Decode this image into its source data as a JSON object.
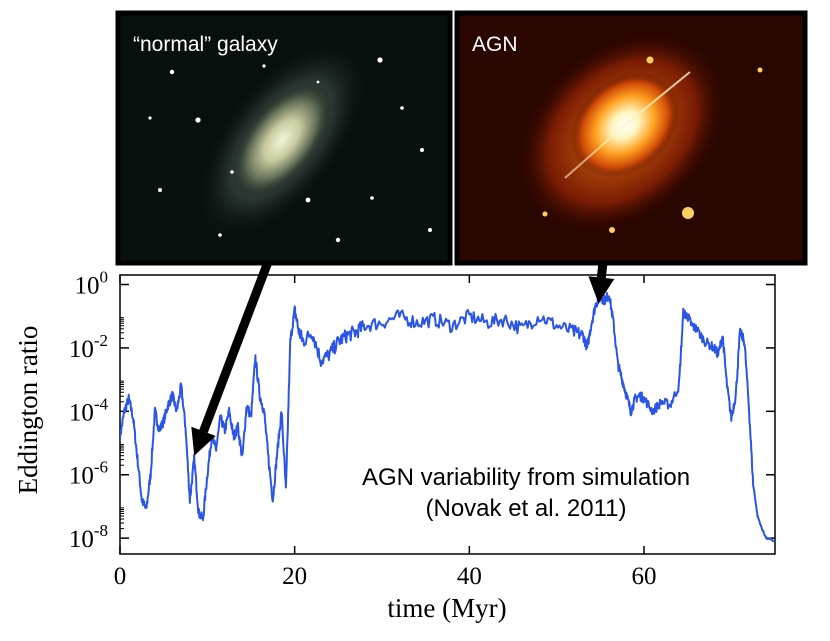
{
  "chart_data": {
    "type": "line",
    "xlabel": "time (Myr)",
    "ylabel": "Eddington ratio",
    "xlim": [
      0,
      75
    ],
    "ylim_log10": [
      -8.5,
      0.3
    ],
    "x_ticks": [
      0,
      20,
      40,
      60
    ],
    "y_ticks": [
      {
        "base": "10",
        "exp": "0",
        "value": 0
      },
      {
        "base": "10",
        "exp": "-2",
        "value": -2
      },
      {
        "base": "10",
        "exp": "-4",
        "value": -4
      },
      {
        "base": "10",
        "exp": "-6",
        "value": -6
      },
      {
        "base": "10",
        "exp": "-8",
        "value": -8
      }
    ],
    "annotation_line1": "AGN variability from simulation",
    "annotation_line2": "(Novak et al. 2011)",
    "inset_labels": {
      "normal": "“normal” galaxy",
      "agn": "AGN"
    },
    "arrow_targets": [
      {
        "label": "“normal” galaxy",
        "time": 8.5,
        "log10_ratio": -5.4
      },
      {
        "label": "AGN",
        "time": 54.8,
        "log10_ratio": -0.6
      }
    ],
    "series": [
      {
        "name": "Eddington ratio",
        "color": "#2b55e6",
        "x": [
          0,
          0.5,
          1,
          1.5,
          2,
          2.5,
          3,
          3.5,
          4,
          4.5,
          5,
          5.5,
          6,
          6.5,
          7,
          7.5,
          8,
          8.5,
          9,
          9.5,
          10,
          10.5,
          11,
          11.5,
          12,
          12.5,
          13,
          13.5,
          14,
          14.5,
          15,
          15.5,
          16,
          16.5,
          17,
          17.5,
          18,
          18.5,
          19,
          19.5,
          20,
          20.5,
          21,
          22,
          23,
          24,
          25,
          26,
          27,
          28,
          30,
          32,
          34,
          36,
          38,
          40,
          42,
          44,
          46,
          48,
          50,
          52,
          53,
          53.5,
          54,
          54.5,
          55,
          55.5,
          56,
          56.5,
          57,
          57.5,
          58,
          58.5,
          59,
          59.5,
          60,
          61,
          62,
          63,
          64,
          64.5,
          65,
          65.5,
          66,
          67,
          68,
          68.5,
          69,
          69.5,
          70,
          70.5,
          71,
          71.5,
          72,
          72.5,
          73,
          73.5,
          74,
          75
        ],
        "log10_ratio": [
          -4.8,
          -4.0,
          -3.6,
          -4.2,
          -5.5,
          -6.8,
          -7.1,
          -6.0,
          -4.0,
          -4.6,
          -4.3,
          -3.8,
          -3.5,
          -4.0,
          -3.2,
          -4.5,
          -6.8,
          -5.5,
          -7.2,
          -7.4,
          -6.0,
          -4.8,
          -5.2,
          -4.2,
          -4.6,
          -4.0,
          -4.8,
          -4.5,
          -5.5,
          -3.8,
          -4.2,
          -2.3,
          -3.5,
          -4.0,
          -5.5,
          -6.8,
          -5.3,
          -4.0,
          -6.5,
          -1.8,
          -0.8,
          -1.5,
          -1.8,
          -1.5,
          -2.4,
          -2.2,
          -1.8,
          -1.6,
          -1.5,
          -1.3,
          -1.2,
          -1.0,
          -1.2,
          -1.1,
          -1.3,
          -1.0,
          -1.2,
          -1.1,
          -1.4,
          -1.0,
          -1.3,
          -1.5,
          -1.6,
          -2.0,
          -1.2,
          -0.6,
          -0.4,
          -0.5,
          -0.3,
          -1.2,
          -2.5,
          -3.0,
          -3.5,
          -4.0,
          -3.6,
          -3.5,
          -3.6,
          -4.0,
          -3.7,
          -3.8,
          -3.2,
          -0.9,
          -1.0,
          -1.3,
          -1.4,
          -1.8,
          -2.0,
          -2.2,
          -1.6,
          -3.2,
          -4.2,
          -3.5,
          -1.5,
          -1.8,
          -3.8,
          -6.3,
          -7.3,
          -7.7,
          -8.0,
          -8.1
        ]
      }
    ]
  }
}
